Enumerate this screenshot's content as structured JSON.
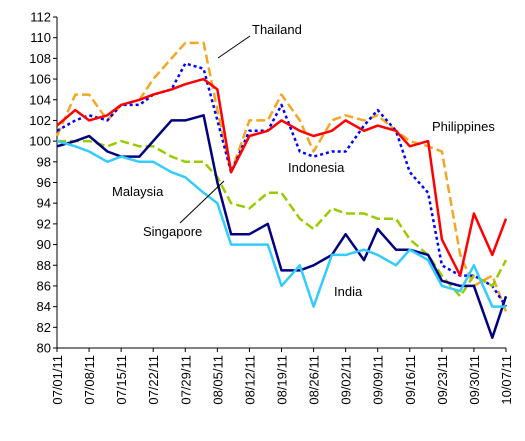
{
  "chart_data": {
    "type": "line",
    "x": [
      "07/01/11",
      "07/05/11",
      "07/08/11",
      "07/12/11",
      "07/15/11",
      "07/19/11",
      "07/22/11",
      "07/26/11",
      "07/29/11",
      "08/02/11",
      "08/05/11",
      "08/08/11",
      "08/12/11",
      "08/16/11",
      "08/19/11",
      "08/23/11",
      "08/26/11",
      "08/30/11",
      "09/02/11",
      "09/06/11",
      "09/09/11",
      "09/13/11",
      "09/16/11",
      "09/20/11",
      "09/23/11",
      "09/27/11",
      "09/30/11",
      "10/04/11",
      "10/07/11"
    ],
    "xlim": [
      "07/01/11",
      "10/07/11"
    ],
    "xticks": [
      "07/01/11",
      "07/08/11",
      "07/15/11",
      "07/22/11",
      "07/29/11",
      "08/05/11",
      "08/12/11",
      "08/19/11",
      "08/26/11",
      "09/02/11",
      "09/09/11",
      "09/16/11",
      "09/23/11",
      "09/30/11",
      "10/07/11"
    ],
    "ylim": [
      80,
      112
    ],
    "yticks": [
      80,
      82,
      84,
      86,
      88,
      90,
      92,
      94,
      96,
      98,
      100,
      102,
      104,
      106,
      108,
      110,
      112
    ],
    "grid": false,
    "series": [
      {
        "name": "Thailand",
        "color": "#f5a623",
        "style": "dashed",
        "values": [
          100.5,
          104.5,
          104.5,
          102,
          103.5,
          104,
          106,
          108,
          109.5,
          109.5,
          103,
          97,
          102,
          102,
          104.5,
          102,
          99,
          102,
          102.5,
          102,
          102.5,
          101,
          100,
          99.5,
          99,
          89,
          86,
          87,
          83.5
        ]
      },
      {
        "name": "Indonesia",
        "color": "#0000ff",
        "style": "dotted",
        "values": [
          101,
          102,
          102.5,
          102,
          103.5,
          103.5,
          104.5,
          105,
          107.5,
          107,
          102,
          97,
          101,
          101,
          103.5,
          99,
          98.5,
          99,
          99,
          101.5,
          103,
          101,
          97,
          95,
          88,
          87,
          87,
          86,
          84
        ]
      },
      {
        "name": "Philippines",
        "color": "#ff0000",
        "style": "solid",
        "values": [
          101.5,
          103,
          102,
          102.5,
          103.5,
          104,
          104.5,
          105,
          105.5,
          106,
          105,
          97,
          100.5,
          101,
          102,
          101,
          100.5,
          101,
          102,
          101,
          101.5,
          101,
          99.5,
          100,
          90.5,
          87,
          93,
          89,
          92.5
        ]
      },
      {
        "name": "Malaysia",
        "color": "#99cc00",
        "style": "dashed",
        "values": [
          100,
          100,
          100,
          99.5,
          100,
          99.5,
          99.5,
          98.5,
          98,
          98,
          96.5,
          94,
          93.5,
          95,
          95,
          92.5,
          91.5,
          93.5,
          93,
          93,
          92.5,
          92.5,
          90.5,
          89,
          87,
          85,
          87,
          86,
          88.5
        ]
      },
      {
        "name": "Singapore",
        "color": "#000080",
        "style": "solid",
        "values": [
          99.5,
          100,
          100.5,
          99,
          98.5,
          98.5,
          100,
          102,
          102,
          102.5,
          96,
          91,
          91,
          92,
          87.5,
          87.5,
          88,
          89,
          91,
          88.5,
          91.5,
          89.5,
          89.5,
          89,
          86.5,
          86,
          86,
          81,
          85
        ]
      },
      {
        "name": "India",
        "color": "#33ccff",
        "style": "solid",
        "values": [
          100,
          99.5,
          99,
          98,
          98.5,
          98,
          98,
          97,
          96.5,
          95,
          94,
          90,
          90,
          90,
          86,
          88,
          84,
          89,
          89,
          89.5,
          89,
          88,
          89.5,
          88.5,
          86,
          85.5,
          88,
          84,
          84
        ]
      }
    ]
  }
}
